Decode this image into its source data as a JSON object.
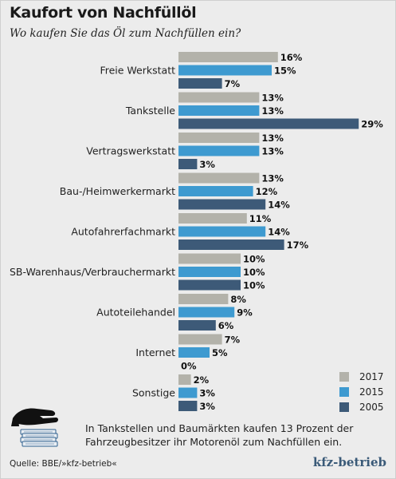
{
  "header": {
    "title": "Kaufort von Nachfüllöl",
    "subtitle": "Wo kaufen Sie das Öl zum Nachfüllen ein?"
  },
  "chart_data": {
    "type": "bar",
    "orientation": "horizontal",
    "categories": [
      "Freie Werkstatt",
      "Tankstelle",
      "Vertragswerkstatt",
      "Bau-/Heimwerkermarkt",
      "Autofahrerfachmarkt",
      "SB-Warenhaus/Verbrauchermarkt",
      "Autoteilehandel",
      "Internet",
      "Sonstige"
    ],
    "series": [
      {
        "name": "2017",
        "color": "#b3b2aa",
        "values": [
          16,
          13,
          13,
          13,
          11,
          10,
          8,
          7,
          2
        ]
      },
      {
        "name": "2015",
        "color": "#3e9ad0",
        "values": [
          15,
          13,
          13,
          12,
          14,
          10,
          9,
          5,
          3
        ]
      },
      {
        "name": "2005",
        "color": "#3d5a78",
        "values": [
          7,
          29,
          3,
          14,
          17,
          10,
          6,
          0,
          3
        ]
      }
    ],
    "value_suffix": "%",
    "xlim": [
      0,
      29
    ],
    "grid": false,
    "legend_position": "bottom-right"
  },
  "legend": [
    {
      "label": "2017",
      "color": "#b3b2aa"
    },
    {
      "label": "2015",
      "color": "#3e9ad0"
    },
    {
      "label": "2005",
      "color": "#3d5a78"
    }
  ],
  "footer": {
    "note": "In Tankstellen und Baumärkten kaufen 13 Prozent der Fahrzeugbesitzer ihr Motorenöl zum Nachfüllen ein.",
    "source": "Quelle: BBE/»kfz-betrieb«",
    "brand": "kfz-betrieb"
  },
  "icons": [
    "hand-money-icon"
  ]
}
